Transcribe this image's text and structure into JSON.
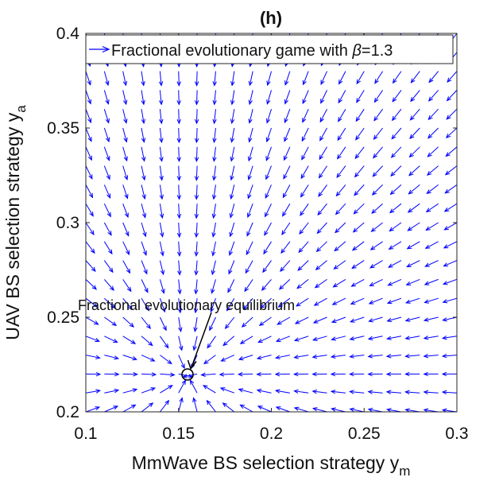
{
  "chart_data": {
    "type": "quiver",
    "title": "(h)",
    "xlabel": "MmWave BS selection strategy y",
    "xlabel_sub": "m",
    "ylabel": "UAV BS selection strategy y",
    "ylabel_sub": "a",
    "xlim": [
      0.1,
      0.3
    ],
    "ylim": [
      0.2,
      0.4
    ],
    "xticks": [
      "0.1",
      "0.15",
      "0.2",
      "0.25",
      "0.3"
    ],
    "yticks": [
      "0.2",
      "0.25",
      "0.3",
      "0.35",
      "0.4"
    ],
    "grid": false,
    "legend_position": "top",
    "series": [
      {
        "name_prefix": "Fractional evolutionary game with ",
        "name_symbol": "β",
        "name_suffix": "=1.3",
        "color": "#0000ff",
        "field": {
          "x_start": 0.1,
          "x_step": 0.01,
          "x_count": 21,
          "y_start": 0.2,
          "y_step": 0.01,
          "y_count": 21,
          "equilibrium": [
            0.155,
            0.219
          ]
        }
      }
    ],
    "equilibrium_point": [
      0.155,
      0.219
    ],
    "annotation": {
      "text": "Fractional evolutionary equilibrium",
      "target": [
        0.155,
        0.219
      ]
    }
  }
}
